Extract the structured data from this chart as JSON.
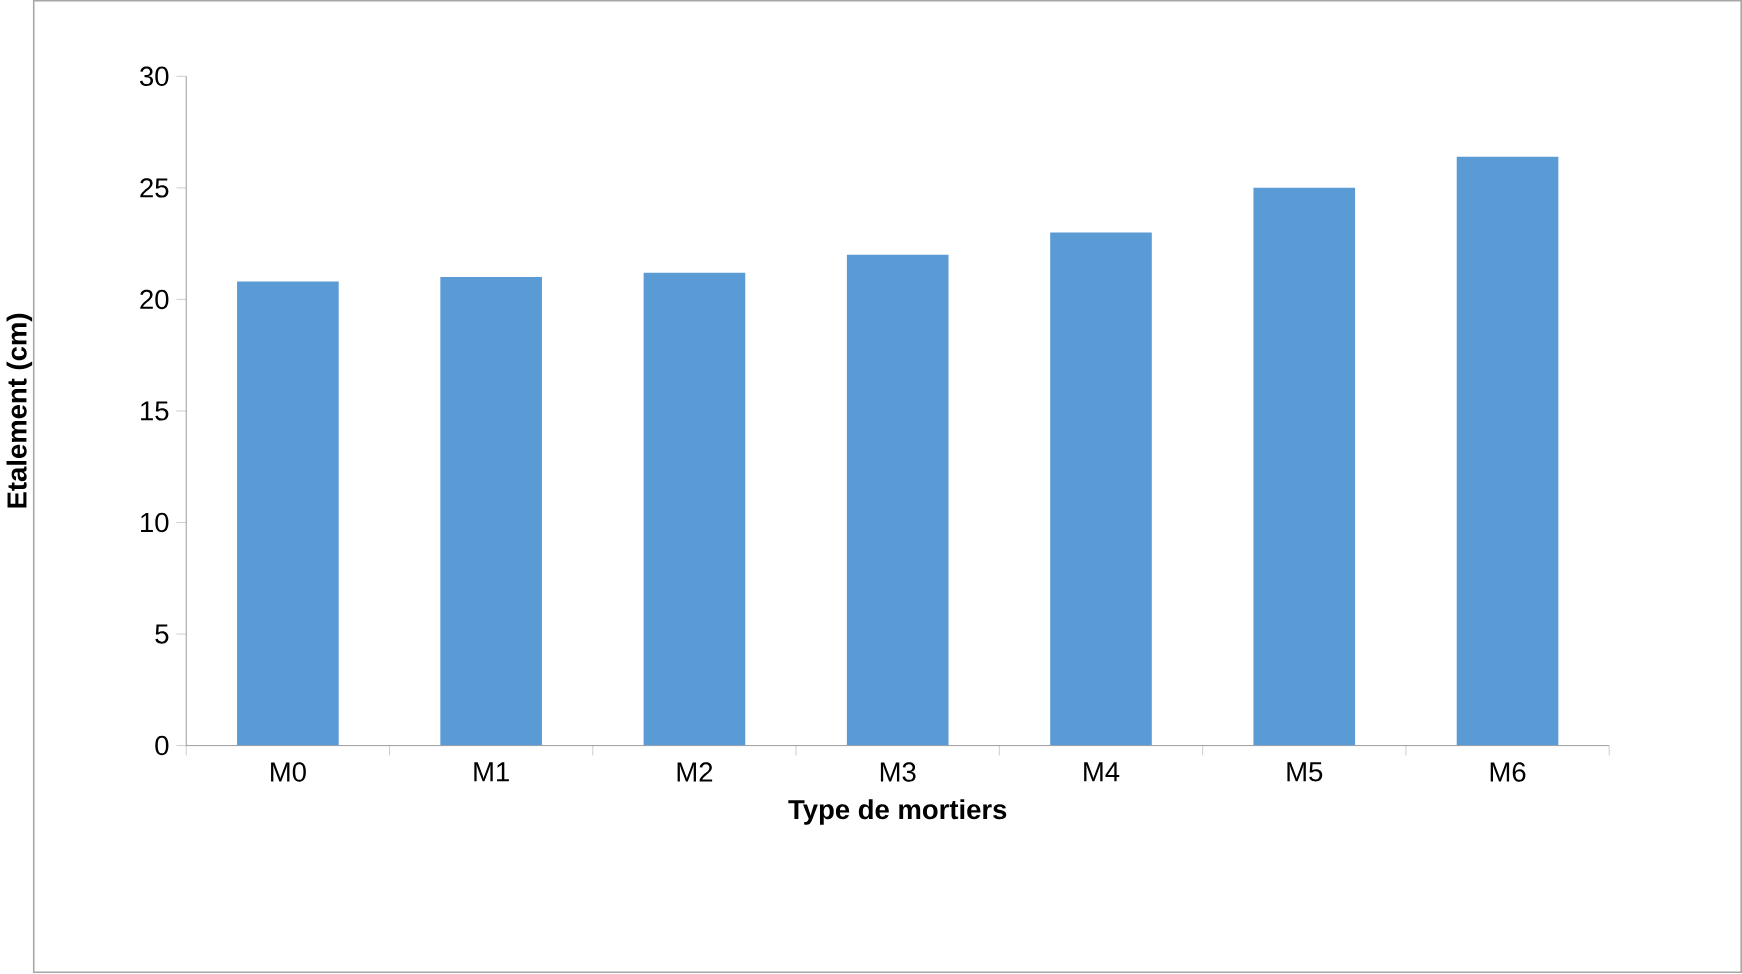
{
  "chart_data": {
    "type": "bar",
    "xlabel": "Type de mortiers",
    "ylabel": "Etalement (cm)",
    "categories": [
      "M0",
      "M1",
      "M2",
      "M3",
      "M4",
      "M5",
      "M6"
    ],
    "values": [
      20.8,
      21.0,
      21.2,
      22.0,
      23.0,
      25.0,
      26.4
    ],
    "color": "#5b9bd5",
    "ylim": [
      0,
      30
    ],
    "yticks": [
      0,
      5,
      10,
      15,
      20,
      25,
      30
    ]
  }
}
